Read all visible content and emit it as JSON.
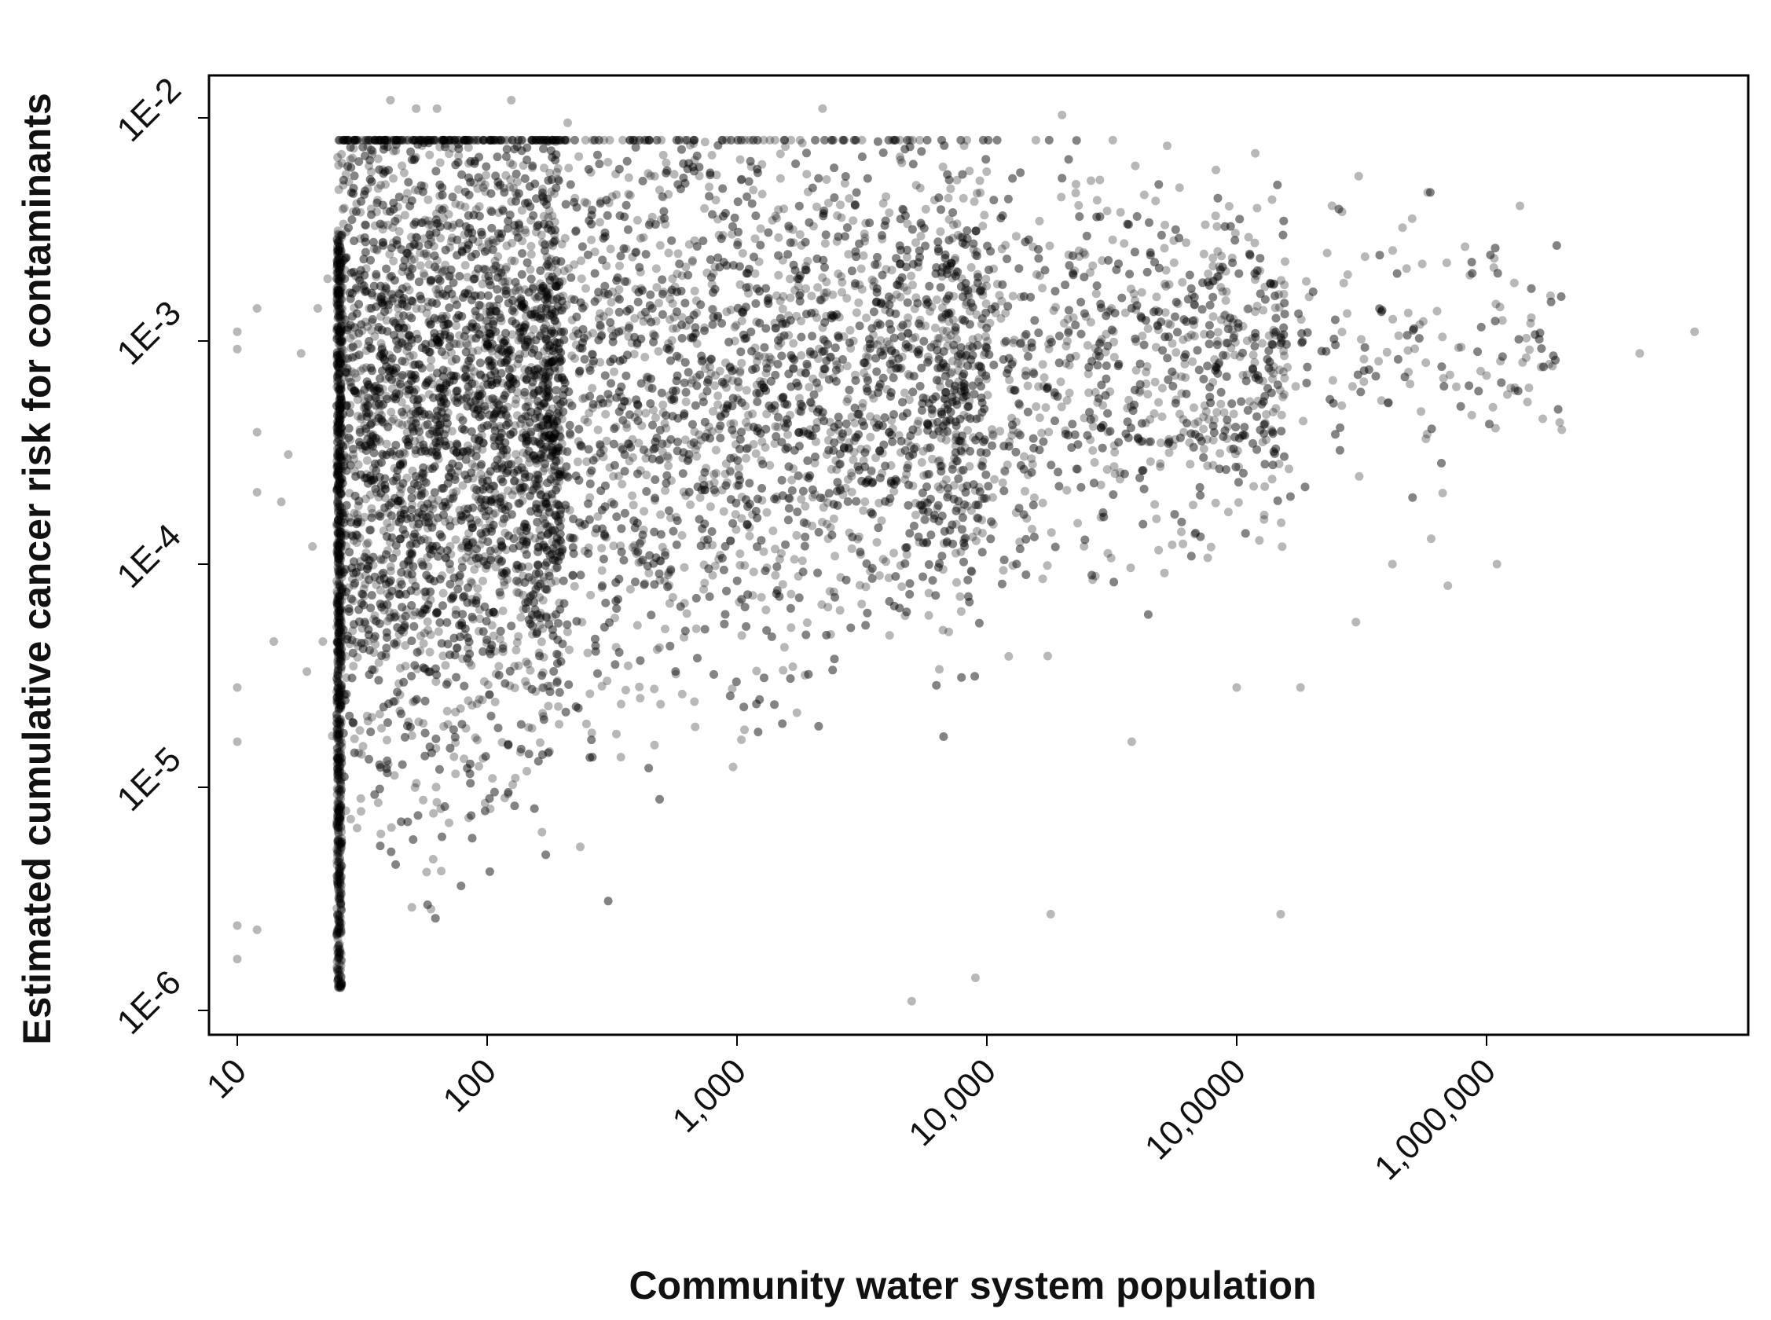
{
  "chart_data": {
    "type": "scatter",
    "xlabel": "Community water system population",
    "ylabel": "Estimated cumulative cancer risk for contaminants",
    "x_scale": "log",
    "y_scale": "log",
    "x_ticks": [
      {
        "value": 10,
        "label": "10"
      },
      {
        "value": 100,
        "label": "100"
      },
      {
        "value": 1000,
        "label": "1,000"
      },
      {
        "value": 10000,
        "label": "10,000"
      },
      {
        "value": 100000,
        "label": "10,0000"
      },
      {
        "value": 1000000,
        "label": "1,000,000"
      }
    ],
    "y_ticks": [
      {
        "value": 1e-06,
        "label": "1E-6"
      },
      {
        "value": 1e-05,
        "label": "1E-5"
      },
      {
        "value": 0.0001,
        "label": "1E-4"
      },
      {
        "value": 0.001,
        "label": "1E-3"
      },
      {
        "value": 0.01,
        "label": "1E-2"
      }
    ],
    "xlim": [
      8,
      7600000
    ],
    "ylim": [
      8.9e-07,
      0.016
    ],
    "grid": false,
    "legend": "none",
    "point_color": "#000000",
    "point_opacity": 0.28,
    "series": [
      {
        "points": [
          [
            10,
            0.0011
          ],
          [
            10,
            0.00092
          ],
          [
            10,
            2.8e-05
          ],
          [
            10,
            1.6e-05
          ],
          [
            10,
            2.4e-06
          ],
          [
            10,
            1.7e-06
          ],
          [
            12,
            0.0014
          ],
          [
            12,
            0.00039
          ],
          [
            12,
            0.00021
          ],
          [
            12,
            2.3e-06
          ],
          [
            14,
            4.5e-05
          ],
          [
            15,
            0.00019
          ],
          [
            16,
            0.00031
          ],
          [
            18,
            0.00088
          ],
          [
            19,
            3.3e-05
          ],
          [
            20,
            0.00012
          ],
          [
            21,
            0.0014
          ],
          [
            22,
            4.5e-05
          ],
          [
            23,
            0.0019
          ],
          [
            24,
            1.7e-05
          ],
          [
            41,
            0.012
          ],
          [
            52,
            0.011
          ],
          [
            63,
            0.011
          ],
          [
            125,
            0.012
          ],
          [
            210,
            0.0095
          ],
          [
            2200,
            0.011
          ],
          [
            20000,
            0.0103
          ],
          [
            4100000,
            0.00088
          ],
          [
            6800000,
            0.0011
          ],
          [
            1500000,
            0.0012
          ],
          [
            1300000,
            0.0006
          ],
          [
            2000000,
            0.0004
          ],
          [
            1000000,
            0.0007
          ],
          [
            1100000,
            0.0001
          ],
          [
            700000,
            8e-05
          ],
          [
            600000,
            0.00013
          ],
          [
            420000,
            0.0001
          ],
          [
            300000,
            5.5e-05
          ],
          [
            180000,
            2.8e-05
          ],
          [
            150000,
            2.7e-06
          ],
          [
            100000,
            2.8e-05
          ],
          [
            38000,
            1.6e-05
          ],
          [
            18000,
            2.7e-06
          ],
          [
            9000,
            1.4e-06
          ],
          [
            5000,
            1.1e-06
          ]
        ]
      }
    ]
  }
}
